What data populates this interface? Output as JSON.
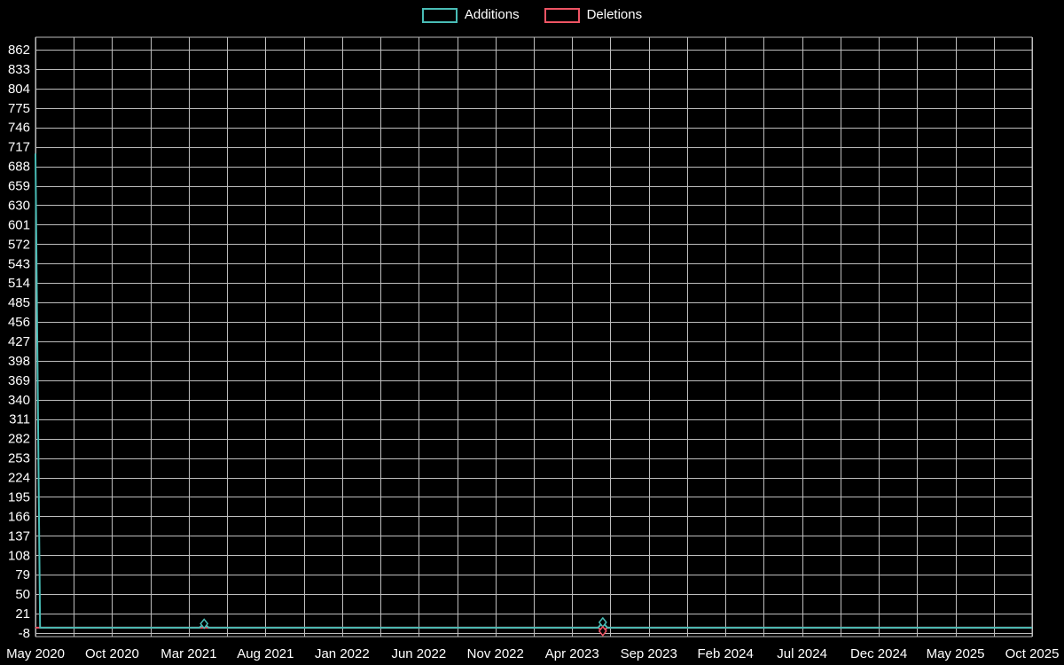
{
  "chart_data": {
    "type": "line",
    "x_encoding": "months since May 2020",
    "x_tick_labels": [
      "May 2020",
      "Oct 2020",
      "Mar 2021",
      "Aug 2021",
      "Jan 2022",
      "Jun 2022",
      "Nov 2022",
      "Apr 2023",
      "Sep 2023",
      "Feb 2024",
      "Jul 2024",
      "Dec 2024",
      "May 2025",
      "Oct 2025"
    ],
    "x_tick_interval_months": 5,
    "x_range_months": [
      0,
      65
    ],
    "y_tick_values": [
      -8,
      21,
      50,
      79,
      108,
      137,
      166,
      195,
      224,
      253,
      282,
      311,
      340,
      369,
      398,
      427,
      456,
      485,
      514,
      543,
      572,
      601,
      630,
      659,
      688,
      717,
      746,
      775,
      804,
      833,
      862
    ],
    "ylim": [
      -8,
      862
    ],
    "y_tick_step": 29,
    "grid": true,
    "legend_position": "top-center",
    "colors": {
      "background": "#000000",
      "grid": "#bdbdbd",
      "text": "#ffffff",
      "additions": "#49bdb6",
      "deletions": "#ef5464"
    },
    "series": [
      {
        "name": "Additions",
        "color": "#49bdb6",
        "points": [
          [
            0,
            707
          ],
          [
            0.3,
            0
          ],
          [
            10.7,
            0
          ],
          [
            11,
            6
          ],
          [
            11.3,
            0
          ],
          [
            36.7,
            0
          ],
          [
            37,
            8
          ],
          [
            37.3,
            0
          ],
          [
            65,
            0
          ]
        ]
      },
      {
        "name": "Deletions",
        "color": "#ef5464",
        "points": [
          [
            0,
            0
          ],
          [
            10.7,
            0
          ],
          [
            11,
            0
          ],
          [
            36.7,
            0
          ],
          [
            37,
            -5
          ],
          [
            37.3,
            0
          ],
          [
            65,
            0
          ]
        ]
      }
    ],
    "markers": [
      {
        "series": "Additions",
        "x": 11,
        "y": 6
      },
      {
        "series": "Additions",
        "x": 37,
        "y": 8
      },
      {
        "series": "Deletions",
        "x": 37,
        "y": -5
      }
    ]
  }
}
